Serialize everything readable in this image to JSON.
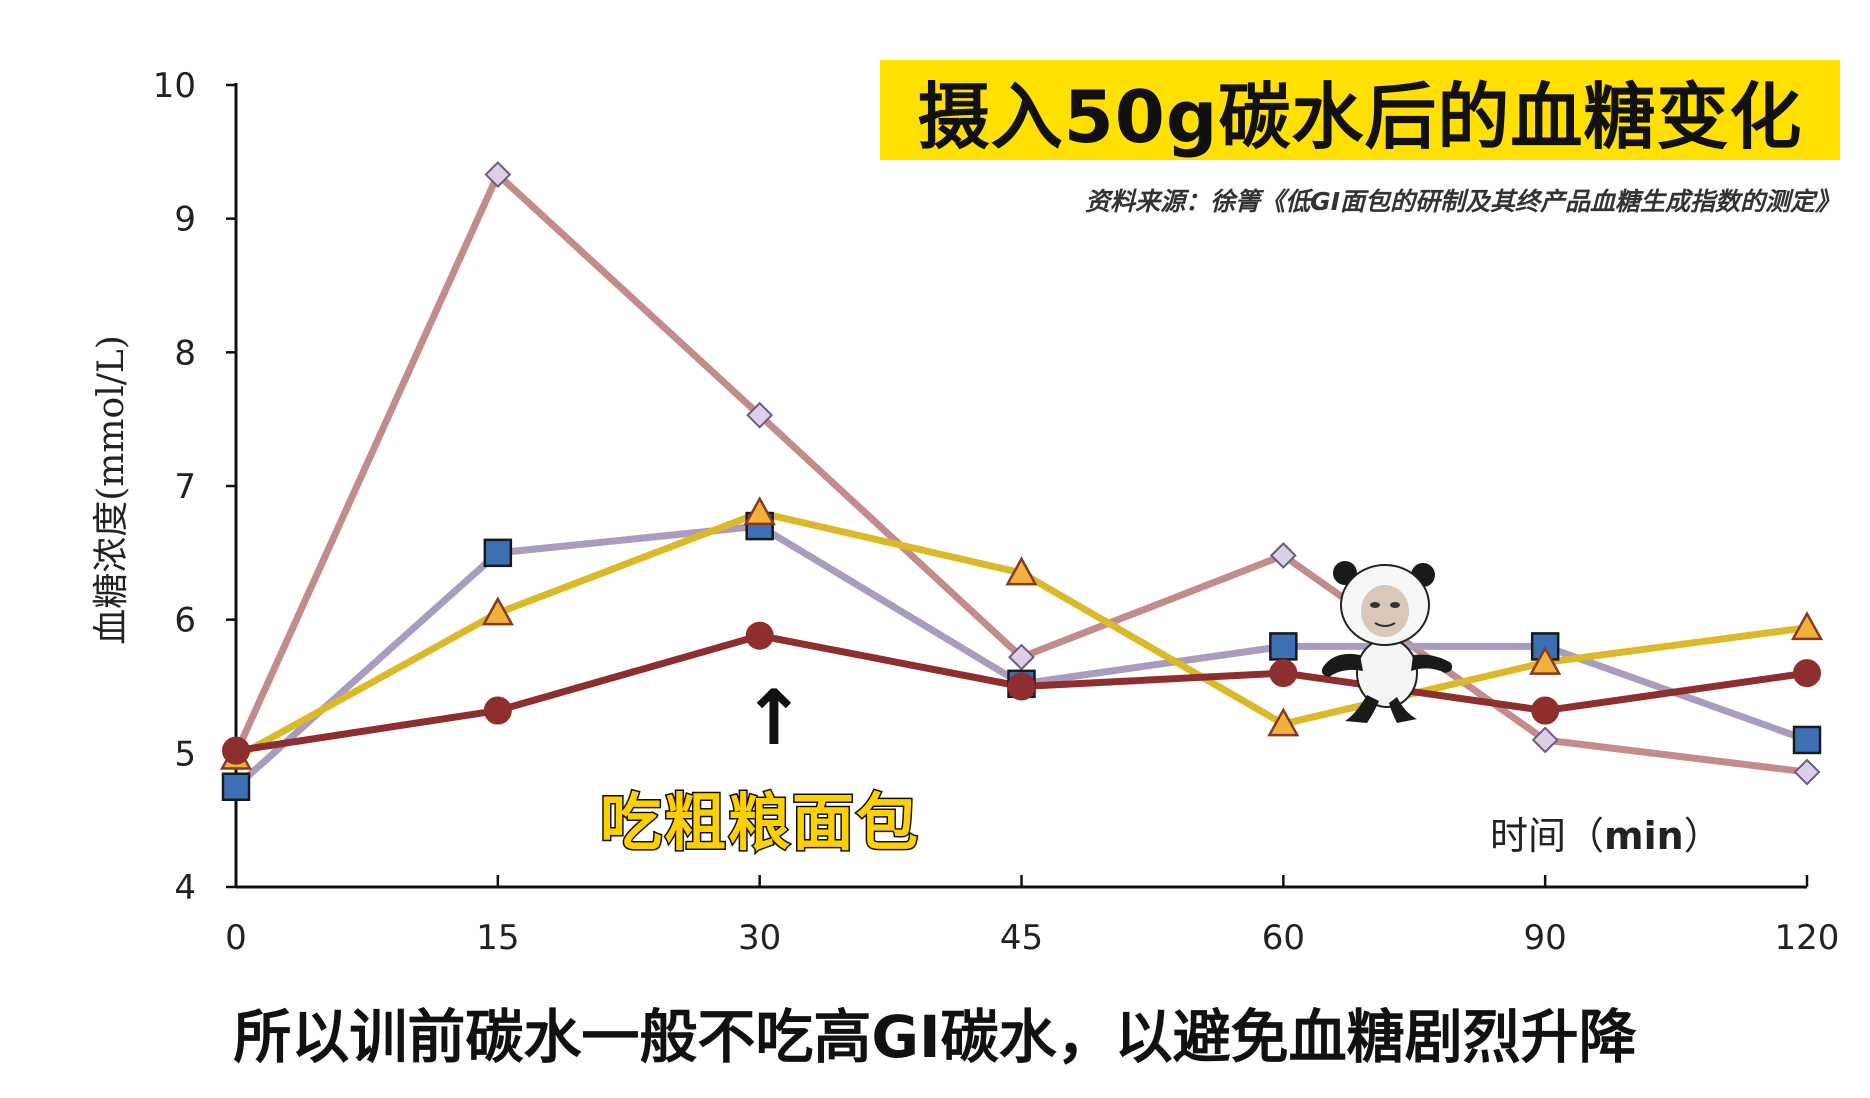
{
  "title": "摄入50g碳水后的血糖变化",
  "source": "资料来源：徐箐《低GI面包的研制及其终产品血糖生成指数的测定》",
  "annotation": {
    "arrow": "↑",
    "text": "吃粗粮面包"
  },
  "subtitle": "所以训前碳水一般不吃高GI碳水，以避免血糖剧烈升降",
  "sticker": {
    "icon": "panda-meme-icon"
  },
  "chart_data": {
    "type": "line",
    "categories": [
      "0",
      "15",
      "30",
      "45",
      "60",
      "90",
      "120"
    ],
    "xlabel": "时间（",
    "xlabel_unit": "min",
    "xlabel_end": "）",
    "ylabel": "血糖浓度(mmol/L)",
    "ylim": [
      4,
      10
    ],
    "yticks": [
      "4",
      "5",
      "6",
      "7",
      "8",
      "9",
      "10"
    ],
    "grid": false,
    "legend": "none",
    "series": [
      {
        "line_color": "#c28c8c",
        "marker": "diamond",
        "marker_fill": "#dcd0e6",
        "marker_stroke": "#6e5a82",
        "values": [
          5.0,
          9.33,
          7.53,
          5.72,
          6.48,
          5.1,
          4.86
        ]
      },
      {
        "line_color": "#a99cbf",
        "marker": "square",
        "marker_fill": "#3d6fb5",
        "marker_stroke": "#1a1a1a",
        "values": [
          4.75,
          6.5,
          6.7,
          5.52,
          5.8,
          5.8,
          5.1
        ]
      },
      {
        "line_color": "#dcb92a",
        "marker": "triangle",
        "marker_fill": "#f2b13e",
        "marker_stroke": "#8a3a1a",
        "values": [
          4.97,
          6.05,
          6.8,
          6.35,
          5.22,
          5.68,
          5.94
        ]
      },
      {
        "line_color": "#8e2e2e",
        "marker": "circle",
        "marker_fill": "#8e2e2e",
        "marker_stroke": "#8e2e2e",
        "values": [
          5.02,
          5.32,
          5.88,
          5.5,
          5.6,
          5.32,
          5.6
        ]
      }
    ]
  }
}
